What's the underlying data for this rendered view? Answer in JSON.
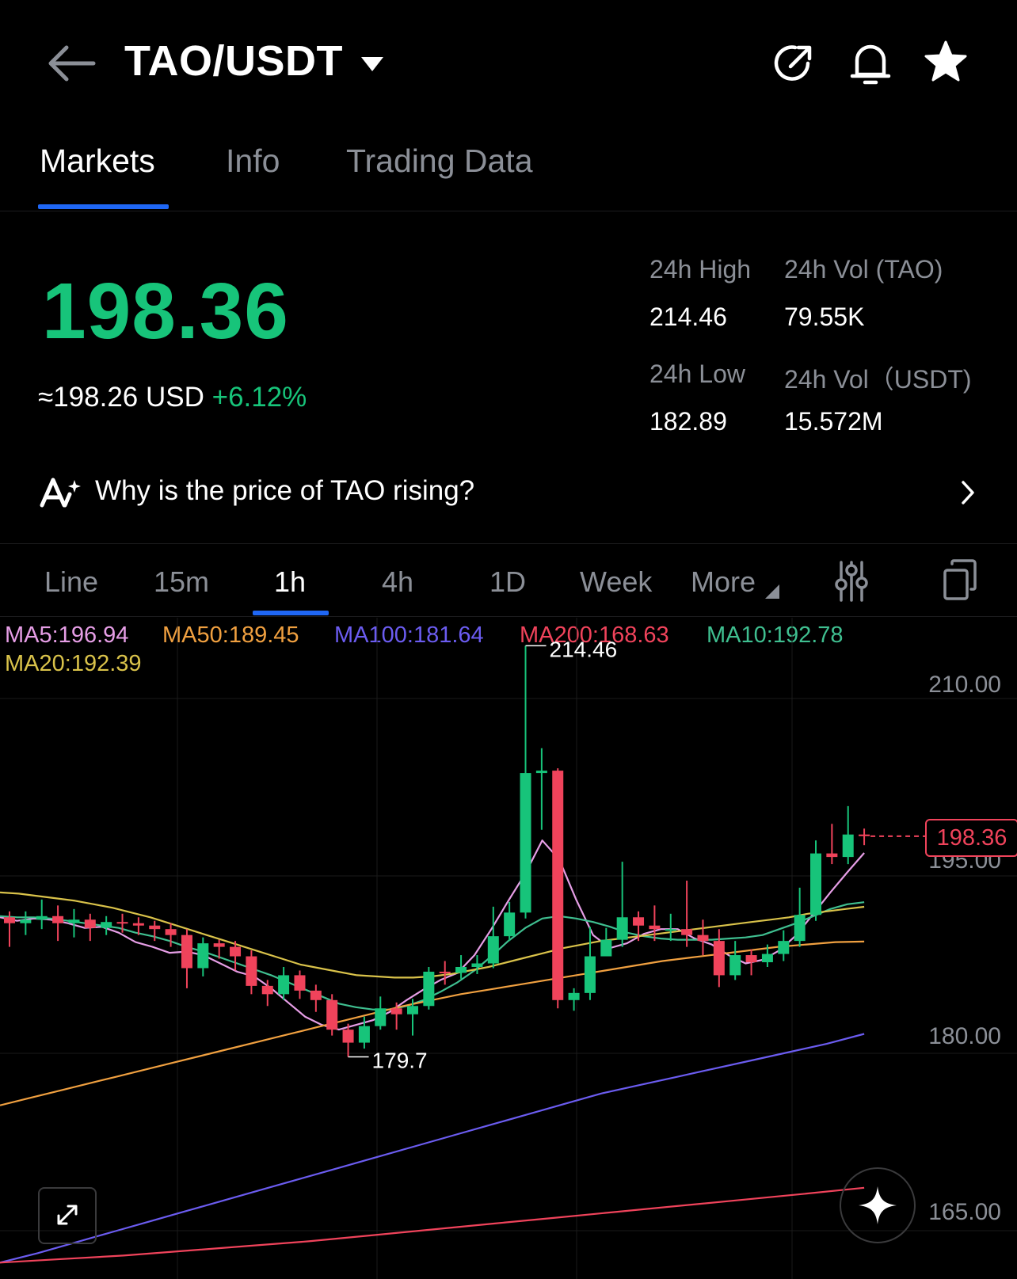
{
  "header": {
    "pair": "TAO/USDT",
    "icons": [
      "back-arrow-icon",
      "chevron-down-icon",
      "share-icon",
      "bell-icon",
      "star-icon"
    ]
  },
  "tabs": [
    "Markets",
    "Info",
    "Trading Data"
  ],
  "ticker": {
    "price": "198.36",
    "usd_prefix": "≈198.26 USD",
    "change": "+6.12%",
    "high_label": "24h High",
    "high_value": "214.46",
    "vol_tao_label": "24h Vol (TAO)",
    "vol_tao_value": "79.55K",
    "low_label": "24h Low",
    "low_value": "182.89",
    "vol_usdt_label": "24h Vol（USDT)",
    "vol_usdt_value": "15.572M"
  },
  "insight": {
    "text": "Why is the price of TAO rising?"
  },
  "timeframes": [
    "Line",
    "15m",
    "1h",
    "4h",
    "1D",
    "Week",
    "More"
  ],
  "colors": {
    "up": "#17c47a",
    "down": "#f0435b",
    "accent": "#1f67f5",
    "ma5": "#e69ee6",
    "ma10": "#3fbf90",
    "ma20": "#d9c24a",
    "ma50": "#f0a040",
    "ma100": "#6b5cf0",
    "ma200": "#f0435b"
  },
  "ma_legend": {
    "ma5": "MA5:196.94",
    "ma50": "MA50:189.45",
    "ma100": "MA100:181.64",
    "ma200": "MA200:168.63",
    "ma10": "MA10:192.78",
    "ma20": "MA20:192.39"
  },
  "chart_data": {
    "type": "candlestick",
    "interval": "1h",
    "y_ticks": [
      "210.00",
      "195.00",
      "180.00",
      "165.00"
    ],
    "ylim": [
      162,
      214.8
    ],
    "current_price": "198.36",
    "high_marker": "214.46",
    "low_marker": "179.7",
    "candles": [
      [
        191.5,
        191.0,
        192.0,
        189.0
      ],
      [
        191.0,
        191.3,
        192.0,
        190.0
      ],
      [
        191.3,
        191.6,
        193.0,
        190.5
      ],
      [
        191.6,
        191.0,
        192.5,
        189.5
      ],
      [
        191.0,
        191.3,
        192.2,
        189.8
      ],
      [
        191.3,
        190.6,
        191.8,
        189.5
      ],
      [
        190.6,
        191.1,
        191.6,
        190.0
      ],
      [
        191.1,
        191.0,
        191.8,
        190.2
      ],
      [
        191.0,
        190.8,
        191.5,
        190.0
      ],
      [
        190.8,
        190.5,
        191.2,
        189.5
      ],
      [
        190.5,
        190.0,
        191.0,
        189.0
      ],
      [
        190.0,
        187.2,
        190.5,
        185.5
      ],
      [
        187.2,
        189.3,
        189.8,
        186.5
      ],
      [
        189.3,
        189.0,
        189.6,
        188.0
      ],
      [
        189.0,
        188.2,
        189.5,
        187.0
      ],
      [
        188.2,
        185.7,
        188.7,
        185.0
      ],
      [
        185.7,
        185.0,
        186.2,
        184.0
      ],
      [
        185.0,
        186.6,
        187.3,
        184.5
      ],
      [
        186.6,
        185.3,
        187.0,
        184.6
      ],
      [
        185.3,
        184.5,
        185.8,
        183.5
      ],
      [
        184.5,
        182.0,
        185.0,
        181.5
      ],
      [
        182.0,
        180.9,
        182.5,
        179.7
      ],
      [
        180.9,
        182.3,
        183.1,
        180.4
      ],
      [
        182.3,
        183.8,
        184.8,
        182.0
      ],
      [
        183.8,
        183.3,
        184.3,
        182.0
      ],
      [
        183.3,
        184.0,
        184.6,
        181.5
      ],
      [
        184.0,
        186.9,
        187.3,
        183.7
      ],
      [
        186.9,
        186.8,
        187.8,
        185.8
      ],
      [
        186.8,
        187.3,
        188.3,
        186.3
      ],
      [
        187.3,
        187.6,
        188.3,
        186.7
      ],
      [
        187.6,
        189.9,
        192.4,
        187.2
      ],
      [
        189.9,
        191.9,
        192.8,
        189.5
      ],
      [
        191.9,
        203.7,
        214.46,
        191.4
      ],
      [
        203.7,
        203.9,
        205.8,
        198.9
      ],
      [
        203.9,
        184.5,
        204.1,
        183.8
      ],
      [
        184.5,
        185.1,
        185.5,
        183.6
      ],
      [
        185.1,
        188.2,
        190.7,
        184.5
      ],
      [
        188.2,
        189.6,
        190.6,
        188.5
      ],
      [
        189.6,
        191.5,
        196.2,
        189.0
      ],
      [
        191.5,
        190.8,
        192.0,
        189.5
      ],
      [
        190.8,
        190.5,
        192.5,
        189.5
      ],
      [
        190.5,
        190.5,
        191.8,
        189.5
      ],
      [
        190.5,
        190.0,
        194.6,
        189.0
      ],
      [
        190.0,
        189.5,
        191.3,
        188.3
      ],
      [
        189.5,
        186.6,
        190.5,
        185.6
      ],
      [
        186.6,
        188.3,
        189.5,
        186.2
      ],
      [
        188.3,
        187.7,
        188.8,
        186.6
      ],
      [
        187.7,
        188.4,
        189.2,
        187.3
      ],
      [
        188.4,
        189.5,
        190.4,
        187.8
      ],
      [
        189.5,
        191.7,
        194.0,
        189.0
      ],
      [
        191.7,
        196.9,
        198.0,
        191.2
      ],
      [
        196.9,
        196.6,
        199.4,
        196.0
      ],
      [
        196.6,
        198.5,
        200.9,
        196.0
      ],
      [
        198.5,
        198.36,
        199.0,
        197.6
      ]
    ],
    "ma_series": [
      {
        "name": "MA5",
        "values": [
          191.5,
          191.2,
          191.4,
          191.3,
          191.0,
          190.6,
          190.7,
          190.2,
          189.4,
          189.0,
          188.5,
          188.6,
          188.3,
          187.6,
          186.9,
          186.5,
          185.5,
          184.3,
          183.1,
          182.4,
          182.0,
          182.4,
          182.8,
          183.5,
          184.5,
          185.4,
          186.2,
          186.8,
          188.3,
          190.5,
          192.9,
          195.2,
          198.0,
          196.4,
          193.0,
          190.0,
          188.9,
          189.3,
          190.1,
          190.5,
          190.5,
          189.7,
          189.2,
          188.3,
          187.6,
          187.9,
          188.7,
          190.0,
          191.8,
          193.6,
          195.3,
          196.94
        ]
      },
      {
        "name": "MA10",
        "values": [
          191.6,
          191.5,
          191.5,
          191.4,
          191.2,
          191.0,
          190.8,
          190.6,
          190.2,
          189.9,
          189.5,
          189.0,
          188.6,
          188.1,
          187.6,
          187.1,
          186.6,
          186.0,
          185.4,
          184.8,
          184.2,
          183.9,
          183.7,
          183.7,
          184.0,
          184.5,
          185.2,
          186.0,
          187.0,
          188.2,
          189.5,
          190.6,
          191.4,
          191.6,
          191.4,
          191.1,
          190.7,
          190.2,
          189.9,
          189.7,
          189.6,
          189.6,
          189.6,
          189.7,
          189.8,
          190.0,
          190.5,
          191.0,
          191.6,
          192.2,
          192.6,
          192.78
        ]
      },
      {
        "name": "MA20",
        "values": [
          193.6,
          193.5,
          193.3,
          193.1,
          192.9,
          192.6,
          192.3,
          191.9,
          191.5,
          191.0,
          190.5,
          190.0,
          189.5,
          189.0,
          188.5,
          188.0,
          187.5,
          187.2,
          186.9,
          186.6,
          186.5,
          186.4,
          186.4,
          186.5,
          186.7,
          187.0,
          187.3,
          187.7,
          188.1,
          188.5,
          188.9,
          189.2,
          189.5,
          189.7,
          189.9,
          190.1,
          190.3,
          190.5,
          190.7,
          190.9,
          191.1,
          191.3,
          191.5,
          191.8,
          192.0,
          192.2,
          192.39
        ]
      },
      {
        "name": "MA50",
        "values": [
          175.6,
          176.2,
          176.8,
          177.4,
          178.0,
          178.6,
          179.2,
          179.8,
          180.4,
          181.0,
          181.6,
          182.2,
          182.8,
          183.4,
          184.0,
          184.5,
          185.0,
          185.4,
          185.8,
          186.2,
          186.6,
          187.0,
          187.4,
          187.8,
          188.1,
          188.4,
          188.7,
          189.0,
          189.2,
          189.4,
          189.45
        ]
      },
      {
        "name": "MA100",
        "values": [
          162.3,
          163.1,
          164.0,
          164.9,
          165.8,
          166.7,
          167.6,
          168.5,
          169.4,
          170.3,
          171.2,
          172.1,
          173.0,
          173.9,
          174.8,
          175.7,
          176.6,
          177.3,
          178.0,
          178.7,
          179.4,
          180.1,
          180.8,
          181.64
        ]
      },
      {
        "name": "MA200",
        "values": [
          162.3,
          162.6,
          162.9,
          163.3,
          163.7,
          164.1,
          164.6,
          165.1,
          165.6,
          166.1,
          166.6,
          167.1,
          167.6,
          168.1,
          168.63
        ]
      }
    ]
  }
}
